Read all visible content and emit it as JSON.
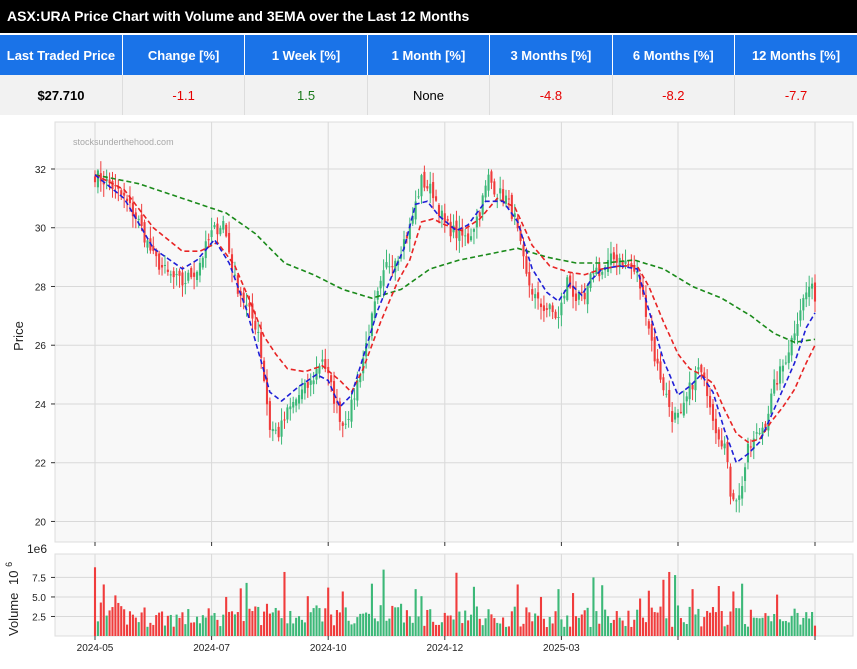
{
  "title": "ASX:URA Price Chart with Volume and 3EMA over the Last 12 Months",
  "stats": {
    "headers": [
      "Last Traded Price",
      "Change [%]",
      "1 Week [%]",
      "1 Month [%]",
      "3 Months [%]",
      "6 Months [%]",
      "12 Months [%]"
    ],
    "values": [
      "$27.710",
      "-1.1",
      "1.5",
      "None",
      "-4.8",
      "-8.2",
      "-7.7"
    ],
    "classes": [
      "bold",
      "neg",
      "pos",
      "neutral",
      "neg",
      "neg",
      "neg"
    ]
  },
  "colors": {
    "up": "#3cb878",
    "down": "#f03c3c",
    "ema_fast": "#1f1fd6",
    "ema_mid": "#e82424",
    "ema_slow": "#1a8a1a"
  },
  "chart_data": {
    "type": "candlestick",
    "watermark": "stocksunderthehood.com",
    "price_axis": {
      "label": "Price",
      "ylim": [
        19.3,
        33.6
      ],
      "ticks": [
        20,
        22,
        24,
        26,
        28,
        30,
        32
      ]
    },
    "volume_axis": {
      "label": "Volume",
      "unit_exponent": "10",
      "exponent_power": "6",
      "offset_label": "1e6",
      "ylim": [
        0,
        10.5
      ],
      "ticks": [
        2.5,
        5.0,
        7.5
      ],
      "tick_labels": [
        "2.5",
        "5.0",
        "7.5"
      ]
    },
    "x_axis": {
      "ticks": [
        "2024-05",
        "2024-07",
        "2024-10",
        "2024-12",
        "2025-03"
      ]
    },
    "legend": "none",
    "grid": true,
    "price_path": [
      [
        0,
        31.8
      ],
      [
        5,
        31.5
      ],
      [
        10,
        31.0
      ],
      [
        15,
        30.2
      ],
      [
        20,
        29.0
      ],
      [
        25,
        28.4
      ],
      [
        30,
        28.1
      ],
      [
        35,
        28.6
      ],
      [
        40,
        29.8
      ],
      [
        44,
        30.2
      ],
      [
        48,
        28.2
      ],
      [
        52,
        27.3
      ],
      [
        56,
        26.5
      ],
      [
        60,
        23.2
      ],
      [
        63,
        23.0
      ],
      [
        66,
        23.7
      ],
      [
        70,
        24.3
      ],
      [
        74,
        24.7
      ],
      [
        78,
        25.6
      ],
      [
        82,
        24.2
      ],
      [
        85,
        23.3
      ],
      [
        88,
        23.9
      ],
      [
        92,
        25.6
      ],
      [
        96,
        27.3
      ],
      [
        100,
        28.7
      ],
      [
        104,
        29.1
      ],
      [
        108,
        30.0
      ],
      [
        112,
        31.6
      ],
      [
        116,
        31.2
      ],
      [
        120,
        30.1
      ],
      [
        124,
        29.8
      ],
      [
        128,
        29.6
      ],
      [
        132,
        30.6
      ],
      [
        135,
        31.7
      ],
      [
        138,
        31.2
      ],
      [
        141,
        31.0
      ],
      [
        144,
        30.3
      ],
      [
        148,
        28.3
      ],
      [
        152,
        27.4
      ],
      [
        156,
        27.2
      ],
      [
        159,
        26.9
      ],
      [
        162,
        28.2
      ],
      [
        165,
        27.6
      ],
      [
        168,
        27.5
      ],
      [
        171,
        28.6
      ],
      [
        174,
        28.5
      ],
      [
        177,
        28.9
      ],
      [
        180,
        29.0
      ],
      [
        183,
        28.7
      ],
      [
        186,
        28.4
      ],
      [
        189,
        27.2
      ],
      [
        192,
        25.6
      ],
      [
        195,
        24.6
      ],
      [
        198,
        23.6
      ],
      [
        201,
        23.5
      ],
      [
        204,
        24.5
      ],
      [
        207,
        25.2
      ],
      [
        210,
        24.5
      ],
      [
        213,
        23.2
      ],
      [
        216,
        22.6
      ],
      [
        218,
        21.0
      ],
      [
        221,
        20.8
      ],
      [
        224,
        22.4
      ],
      [
        227,
        22.9
      ],
      [
        230,
        23.4
      ],
      [
        233,
        24.6
      ],
      [
        236,
        25.3
      ],
      [
        239,
        26.2
      ],
      [
        242,
        27.3
      ],
      [
        245,
        28.0
      ],
      [
        247,
        27.7
      ]
    ],
    "ema_fast_path": [
      [
        0,
        31.8
      ],
      [
        10,
        31.0
      ],
      [
        20,
        29.3
      ],
      [
        30,
        28.6
      ],
      [
        35,
        28.9
      ],
      [
        41,
        29.6
      ],
      [
        46,
        28.8
      ],
      [
        52,
        27.2
      ],
      [
        56,
        25.8
      ],
      [
        60,
        24.4
      ],
      [
        64,
        24.1
      ],
      [
        70,
        24.6
      ],
      [
        76,
        25.0
      ],
      [
        80,
        24.8
      ],
      [
        84,
        23.9
      ],
      [
        88,
        24.3
      ],
      [
        92,
        25.6
      ],
      [
        97,
        27.2
      ],
      [
        102,
        28.4
      ],
      [
        106,
        29.3
      ],
      [
        110,
        30.8
      ],
      [
        114,
        30.9
      ],
      [
        118,
        30.4
      ],
      [
        124,
        29.9
      ],
      [
        128,
        30.1
      ],
      [
        134,
        30.9
      ],
      [
        140,
        30.9
      ],
      [
        145,
        30.2
      ],
      [
        150,
        28.6
      ],
      [
        155,
        27.8
      ],
      [
        159,
        27.5
      ],
      [
        163,
        28.1
      ],
      [
        167,
        27.7
      ],
      [
        170,
        28.2
      ],
      [
        174,
        28.6
      ],
      [
        180,
        28.7
      ],
      [
        186,
        28.6
      ],
      [
        190,
        27.2
      ],
      [
        195,
        25.5
      ],
      [
        200,
        24.3
      ],
      [
        204,
        24.6
      ],
      [
        208,
        25.0
      ],
      [
        212,
        24.4
      ],
      [
        216,
        23.1
      ],
      [
        220,
        22.0
      ],
      [
        224,
        22.3
      ],
      [
        228,
        22.7
      ],
      [
        232,
        23.6
      ],
      [
        236,
        24.5
      ],
      [
        240,
        25.4
      ],
      [
        244,
        26.6
      ],
      [
        247,
        27.1
      ]
    ],
    "ema_mid_path": [
      [
        0,
        31.8
      ],
      [
        10,
        31.3
      ],
      [
        20,
        30.0
      ],
      [
        30,
        29.2
      ],
      [
        36,
        29.2
      ],
      [
        42,
        29.5
      ],
      [
        48,
        28.7
      ],
      [
        54,
        27.3
      ],
      [
        58,
        26.3
      ],
      [
        62,
        25.7
      ],
      [
        66,
        25.2
      ],
      [
        72,
        25.1
      ],
      [
        78,
        25.3
      ],
      [
        84,
        24.8
      ],
      [
        88,
        24.4
      ],
      [
        92,
        25.2
      ],
      [
        98,
        26.8
      ],
      [
        104,
        28.2
      ],
      [
        108,
        28.9
      ],
      [
        112,
        30.2
      ],
      [
        116,
        30.3
      ],
      [
        120,
        30.1
      ],
      [
        126,
        29.9
      ],
      [
        132,
        30.3
      ],
      [
        138,
        31.0
      ],
      [
        144,
        30.7
      ],
      [
        150,
        29.4
      ],
      [
        156,
        28.7
      ],
      [
        162,
        28.5
      ],
      [
        168,
        28.4
      ],
      [
        174,
        28.6
      ],
      [
        180,
        28.7
      ],
      [
        186,
        28.7
      ],
      [
        190,
        28.0
      ],
      [
        195,
        26.8
      ],
      [
        200,
        25.7
      ],
      [
        204,
        25.2
      ],
      [
        208,
        25.0
      ],
      [
        212,
        24.7
      ],
      [
        216,
        23.8
      ],
      [
        220,
        23.0
      ],
      [
        224,
        22.7
      ],
      [
        228,
        22.8
      ],
      [
        232,
        23.4
      ],
      [
        236,
        23.9
      ],
      [
        240,
        24.5
      ],
      [
        244,
        25.4
      ],
      [
        247,
        26.0
      ]
    ],
    "ema_slow_path": [
      [
        0,
        31.8
      ],
      [
        15,
        31.5
      ],
      [
        30,
        31.0
      ],
      [
        45,
        30.5
      ],
      [
        55,
        29.8
      ],
      [
        65,
        28.8
      ],
      [
        75,
        28.4
      ],
      [
        85,
        27.9
      ],
      [
        95,
        27.6
      ],
      [
        105,
        27.9
      ],
      [
        115,
        28.6
      ],
      [
        125,
        28.9
      ],
      [
        135,
        29.1
      ],
      [
        145,
        29.3
      ],
      [
        155,
        29.0
      ],
      [
        165,
        28.8
      ],
      [
        175,
        28.8
      ],
      [
        185,
        28.9
      ],
      [
        195,
        28.6
      ],
      [
        205,
        28.0
      ],
      [
        215,
        27.6
      ],
      [
        225,
        27.0
      ],
      [
        233,
        26.4
      ],
      [
        240,
        26.1
      ],
      [
        247,
        26.2
      ]
    ],
    "volume_base": [
      [
        0,
        3.5
      ],
      [
        10,
        2.6
      ],
      [
        30,
        2.3
      ],
      [
        50,
        2.4
      ],
      [
        60,
        3.0
      ],
      [
        75,
        2.5
      ],
      [
        95,
        3.2
      ],
      [
        105,
        2.8
      ],
      [
        115,
        2.4
      ],
      [
        130,
        2.6
      ],
      [
        150,
        2.5
      ],
      [
        165,
        2.4
      ],
      [
        185,
        2.2
      ],
      [
        195,
        2.7
      ],
      [
        205,
        2.4
      ],
      [
        220,
        2.6
      ],
      [
        235,
        2.0
      ],
      [
        247,
        2.0
      ]
    ],
    "volume_spikes": [
      [
        0,
        8.8
      ],
      [
        3,
        6.6
      ],
      [
        7,
        5.2
      ],
      [
        45,
        5.0
      ],
      [
        50,
        6.1
      ],
      [
        52,
        6.8
      ],
      [
        65,
        8.2
      ],
      [
        73,
        5.1
      ],
      [
        80,
        6.2
      ],
      [
        85,
        5.7
      ],
      [
        95,
        6.7
      ],
      [
        99,
        8.5
      ],
      [
        110,
        6.0
      ],
      [
        112,
        5.1
      ],
      [
        124,
        8.1
      ],
      [
        130,
        6.3
      ],
      [
        145,
        6.6
      ],
      [
        153,
        5.0
      ],
      [
        159,
        6.0
      ],
      [
        164,
        5.5
      ],
      [
        171,
        7.5
      ],
      [
        174,
        6.5
      ],
      [
        187,
        4.8
      ],
      [
        190,
        5.8
      ],
      [
        195,
        7.2
      ],
      [
        197,
        8.2
      ],
      [
        199,
        7.8
      ],
      [
        205,
        6.0
      ],
      [
        214,
        6.4
      ],
      [
        219,
        5.7
      ],
      [
        222,
        6.7
      ],
      [
        234,
        5.3
      ],
      [
        240,
        3.5
      ]
    ]
  }
}
